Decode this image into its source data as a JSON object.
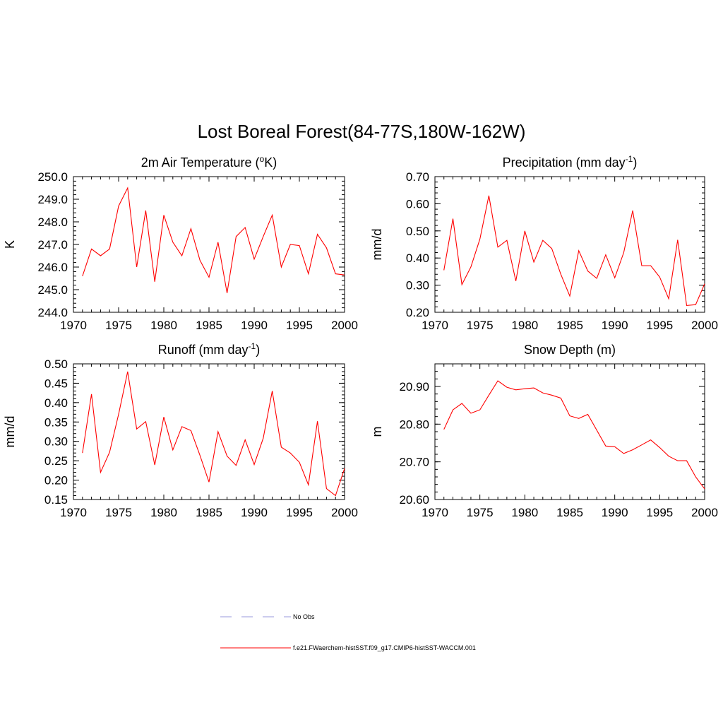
{
  "figure": {
    "title": "Lost Boreal Forest(84-77S,180W-162W)"
  },
  "legend": [
    {
      "label": "No Obs",
      "color": "#9999dd",
      "dash": "dashed"
    },
    {
      "label": "f.e21.FWaerchem-histSST.f09_g17.CMIP6-histSST-WACCM.001",
      "color": "#ff0000",
      "dash": "solid"
    }
  ],
  "chart_data": [
    {
      "type": "line",
      "title": "2m Air Temperature",
      "title_unit": "K",
      "ylabel": "K",
      "xlim": [
        1970,
        2000
      ],
      "ylim": [
        244.0,
        250.0
      ],
      "x_ticks": [
        1970,
        1975,
        1980,
        1985,
        1990,
        1995,
        2000
      ],
      "y_ticks": [
        "244.0",
        "245.0",
        "246.0",
        "247.0",
        "248.0",
        "249.0",
        "250.0"
      ],
      "y_minor_step": 0.2,
      "x": [
        1971,
        1972,
        1973,
        1974,
        1975,
        1976,
        1977,
        1978,
        1979,
        1980,
        1981,
        1982,
        1983,
        1984,
        1985,
        1986,
        1987,
        1988,
        1989,
        1990,
        1991,
        1992,
        1993,
        1994,
        1995,
        1996,
        1997,
        1998,
        1999,
        2000
      ],
      "series": [
        {
          "color": "#ff0000",
          "values": [
            245.6,
            246.8,
            246.5,
            246.8,
            248.7,
            249.5,
            246.0,
            248.5,
            245.35,
            248.3,
            247.1,
            246.5,
            247.7,
            246.3,
            245.55,
            247.1,
            244.85,
            247.35,
            247.75,
            246.35,
            247.35,
            248.3,
            246.0,
            247.0,
            246.95,
            245.7,
            247.45,
            246.85,
            245.7,
            245.65
          ]
        }
      ]
    },
    {
      "type": "line",
      "title": "Precipitation",
      "title_unit": "mm day",
      "title_sup": "-1",
      "ylabel": "mm/d",
      "xlim": [
        1970,
        2000
      ],
      "ylim": [
        0.2,
        0.7
      ],
      "x_ticks": [
        1970,
        1975,
        1980,
        1985,
        1990,
        1995,
        2000
      ],
      "y_ticks": [
        "0.20",
        "0.30",
        "0.40",
        "0.50",
        "0.60",
        "0.70"
      ],
      "y_minor_step": 0.02,
      "x": [
        1971,
        1972,
        1973,
        1974,
        1975,
        1976,
        1977,
        1978,
        1979,
        1980,
        1981,
        1982,
        1983,
        1984,
        1985,
        1986,
        1987,
        1988,
        1989,
        1990,
        1991,
        1992,
        1993,
        1994,
        1995,
        1996,
        1997,
        1998,
        1999,
        2000
      ],
      "series": [
        {
          "color": "#ff0000",
          "values": [
            0.355,
            0.545,
            0.302,
            0.367,
            0.47,
            0.63,
            0.44,
            0.465,
            0.315,
            0.5,
            0.385,
            0.465,
            0.435,
            0.34,
            0.26,
            0.427,
            0.352,
            0.325,
            0.412,
            0.327,
            0.42,
            0.575,
            0.372,
            0.372,
            0.33,
            0.25,
            0.467,
            0.225,
            0.228,
            0.305
          ]
        }
      ]
    },
    {
      "type": "line",
      "title": "Runoff",
      "title_unit": "mm day",
      "title_sup": "-1",
      "ylabel": "mm/d",
      "xlim": [
        1970,
        2000
      ],
      "ylim": [
        0.15,
        0.5
      ],
      "x_ticks": [
        1970,
        1975,
        1980,
        1985,
        1990,
        1995,
        2000
      ],
      "y_ticks": [
        "0.15",
        "0.20",
        "0.25",
        "0.30",
        "0.35",
        "0.40",
        "0.45",
        "0.50"
      ],
      "y_minor_step": 0.01,
      "x": [
        1971,
        1972,
        1973,
        1974,
        1975,
        1976,
        1977,
        1978,
        1979,
        1980,
        1981,
        1982,
        1983,
        1984,
        1985,
        1986,
        1987,
        1988,
        1989,
        1990,
        1991,
        1992,
        1993,
        1994,
        1995,
        1996,
        1997,
        1998,
        1999,
        2000
      ],
      "series": [
        {
          "color": "#ff0000",
          "values": [
            0.27,
            0.422,
            0.22,
            0.272,
            0.37,
            0.48,
            0.332,
            0.351,
            0.239,
            0.363,
            0.278,
            0.338,
            0.328,
            0.264,
            0.195,
            0.325,
            0.262,
            0.238,
            0.304,
            0.24,
            0.308,
            0.43,
            0.285,
            0.27,
            0.246,
            0.188,
            0.352,
            0.178,
            0.16,
            0.23
          ]
        }
      ]
    },
    {
      "type": "line",
      "title": "Snow Depth",
      "title_unit": "m",
      "ylabel": "m",
      "xlim": [
        1970,
        2000
      ],
      "ylim": [
        20.6,
        20.96
      ],
      "x_ticks": [
        1970,
        1975,
        1980,
        1985,
        1990,
        1995,
        2000
      ],
      "y_ticks": [
        "20.60",
        "20.70",
        "20.80",
        "20.90"
      ],
      "y_minor_step": 0.02,
      "x": [
        1971,
        1972,
        1973,
        1974,
        1975,
        1976,
        1977,
        1978,
        1979,
        1980,
        1981,
        1982,
        1983,
        1984,
        1985,
        1986,
        1987,
        1988,
        1989,
        1990,
        1991,
        1992,
        1993,
        1994,
        1995,
        1996,
        1997,
        1998,
        1999,
        2000
      ],
      "series": [
        {
          "color": "#ff0000",
          "values": [
            20.786,
            20.838,
            20.855,
            20.829,
            20.838,
            20.877,
            20.915,
            20.898,
            20.891,
            20.894,
            20.896,
            20.883,
            20.877,
            20.869,
            20.822,
            20.815,
            20.826,
            20.784,
            20.742,
            20.74,
            20.722,
            20.732,
            20.745,
            20.758,
            20.738,
            20.715,
            20.703,
            20.703,
            20.66,
            20.628
          ]
        }
      ]
    }
  ]
}
